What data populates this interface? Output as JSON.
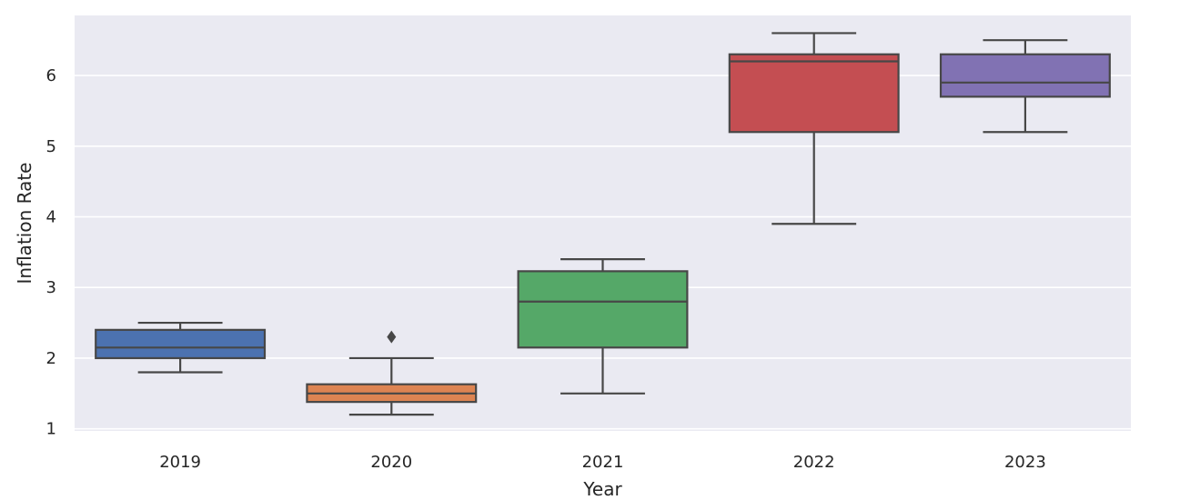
{
  "chart_data": {
    "type": "box",
    "xlabel": "Year",
    "ylabel": "Inflation Rate",
    "ylim": [
      0.97,
      6.85
    ],
    "yticks": [
      1,
      2,
      3,
      4,
      5,
      6
    ],
    "grid": true,
    "background_color": "#eaeaf2",
    "grid_color": "#ffffff",
    "line_color": "#474747",
    "categories": [
      "2019",
      "2020",
      "2021",
      "2022",
      "2023"
    ],
    "boxes": [
      {
        "category": "2019",
        "whisker_low": 1.8,
        "q1": 2.0,
        "median": 2.15,
        "q3": 2.4,
        "whisker_high": 2.5,
        "outliers": [],
        "color": "#4c72b0"
      },
      {
        "category": "2020",
        "whisker_low": 1.2,
        "q1": 1.38,
        "median": 1.5,
        "q3": 1.63,
        "whisker_high": 2.0,
        "outliers": [
          2.3
        ],
        "color": "#dd8452"
      },
      {
        "category": "2021",
        "whisker_low": 1.5,
        "q1": 2.15,
        "median": 2.8,
        "q3": 3.23,
        "whisker_high": 3.4,
        "outliers": [],
        "color": "#55a868"
      },
      {
        "category": "2022",
        "whisker_low": 3.9,
        "q1": 5.2,
        "median": 6.2,
        "q3": 6.3,
        "whisker_high": 6.6,
        "outliers": [],
        "color": "#c44e52"
      },
      {
        "category": "2023",
        "whisker_low": 5.2,
        "q1": 5.7,
        "median": 5.9,
        "q3": 6.3,
        "whisker_high": 6.5,
        "outliers": [],
        "color": "#8172b3"
      }
    ]
  }
}
